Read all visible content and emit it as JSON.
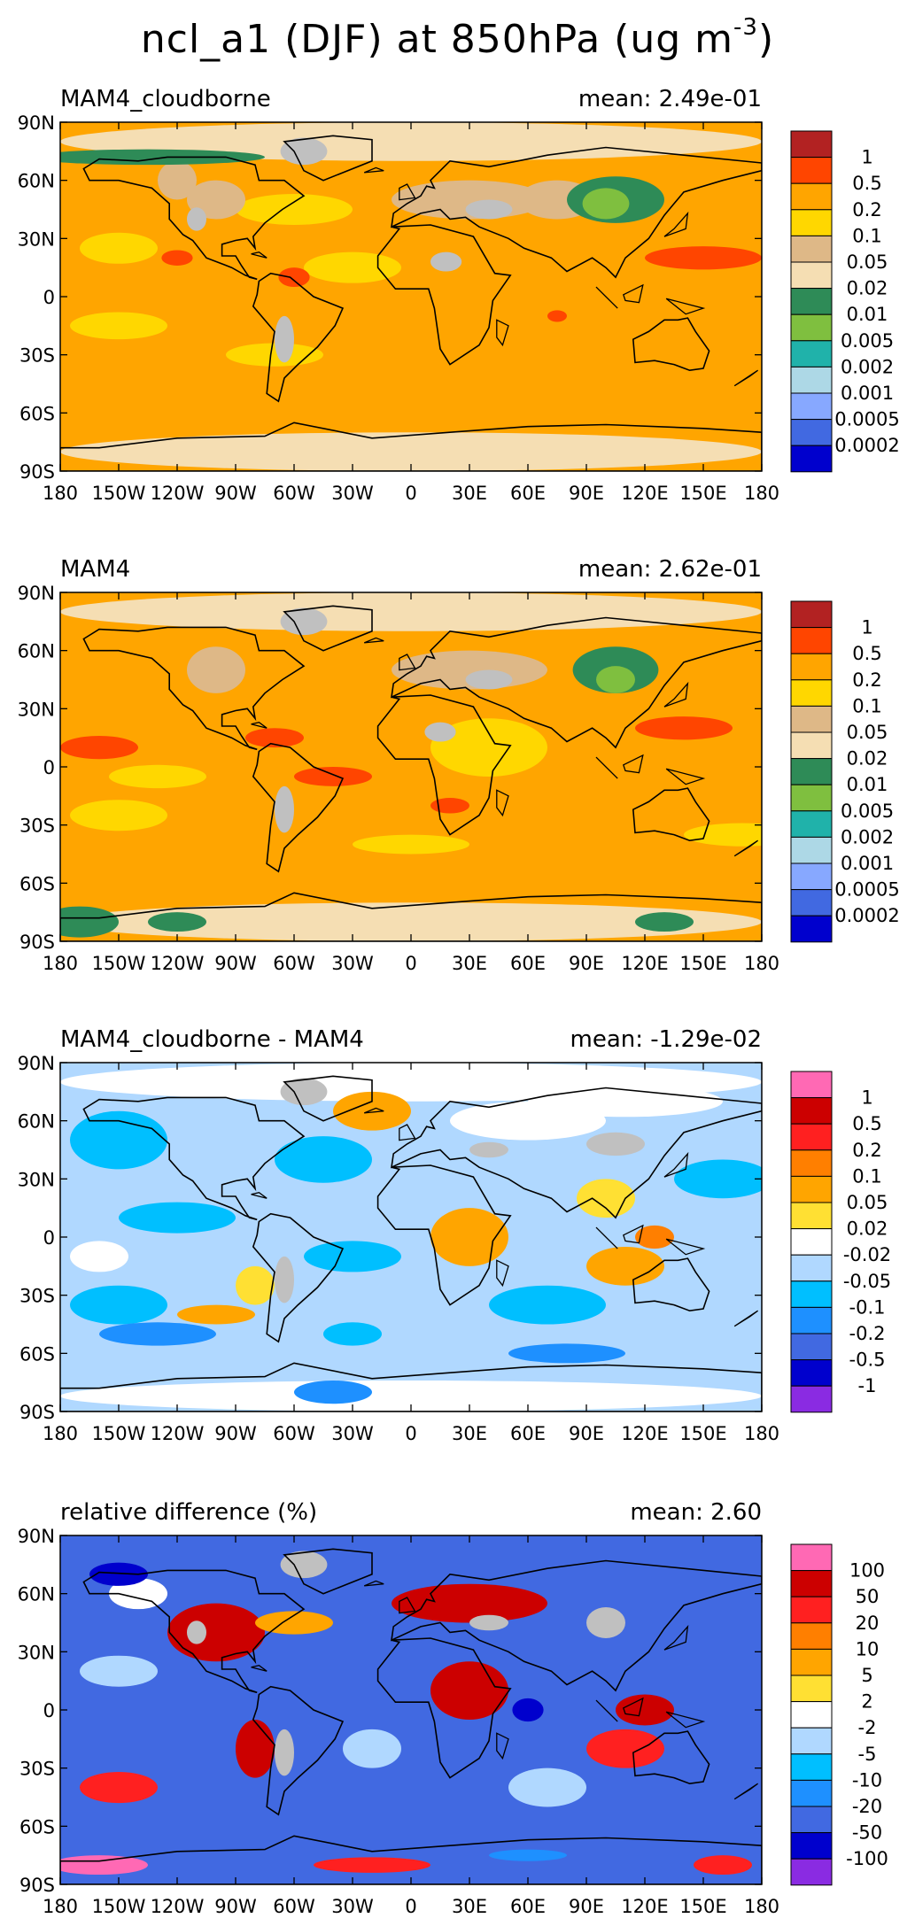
{
  "title": {
    "main": "ncl_a1 (DJF) at 850hPa (ug m",
    "superscript": "-3",
    "close": ")"
  },
  "chart_data": [
    {
      "type": "heatmap",
      "name": "MAM4_cloudborne",
      "title_left": "MAM4_cloudborne",
      "title_right": "mean: 2.49e-01",
      "mean": 0.249,
      "xlabel": "",
      "ylabel": "",
      "xlim": [
        -180,
        180
      ],
      "ylim": [
        -90,
        90
      ],
      "x_ticks": [
        -180,
        -150,
        -120,
        -90,
        -60,
        -30,
        0,
        30,
        60,
        90,
        120,
        150,
        180
      ],
      "x_tick_labels": [
        "180",
        "150W",
        "120W",
        "90W",
        "60W",
        "30W",
        "0",
        "30E",
        "60E",
        "90E",
        "120E",
        "150E",
        "180"
      ],
      "y_ticks": [
        90,
        60,
        30,
        0,
        -30,
        -60,
        -90
      ],
      "y_tick_labels": [
        "90N",
        "60N",
        "30N",
        "0",
        "30S",
        "60S",
        "90S"
      ],
      "legend": {
        "levels": [
          "1",
          "0.5",
          "0.2",
          "0.1",
          "0.05",
          "0.02",
          "0.01",
          "0.005",
          "0.002",
          "0.001",
          "0.0005",
          "0.0002"
        ],
        "colors": [
          "#b22222",
          "#ff4500",
          "#ffa500",
          "#ffd700",
          "#deb887",
          "#f5deb3",
          "#2e8b57",
          "#7fbf3f",
          "#20b2aa",
          "#add8e6",
          "#87a8ff",
          "#4169e1",
          "#0000cd"
        ]
      },
      "background_color": "#ffa500"
    },
    {
      "type": "heatmap",
      "name": "MAM4",
      "title_left": "MAM4",
      "title_right": "mean: 2.62e-01",
      "mean": 0.262,
      "xlabel": "",
      "ylabel": "",
      "xlim": [
        -180,
        180
      ],
      "ylim": [
        -90,
        90
      ],
      "x_ticks": [
        -180,
        -150,
        -120,
        -90,
        -60,
        -30,
        0,
        30,
        60,
        90,
        120,
        150,
        180
      ],
      "x_tick_labels": [
        "180",
        "150W",
        "120W",
        "90W",
        "60W",
        "30W",
        "0",
        "30E",
        "60E",
        "90E",
        "120E",
        "150E",
        "180"
      ],
      "y_ticks": [
        90,
        60,
        30,
        0,
        -30,
        -60,
        -90
      ],
      "y_tick_labels": [
        "90N",
        "60N",
        "30N",
        "0",
        "30S",
        "60S",
        "90S"
      ],
      "legend": {
        "levels": [
          "1",
          "0.5",
          "0.2",
          "0.1",
          "0.05",
          "0.02",
          "0.01",
          "0.005",
          "0.002",
          "0.001",
          "0.0005",
          "0.0002"
        ],
        "colors": [
          "#b22222",
          "#ff4500",
          "#ffa500",
          "#ffd700",
          "#deb887",
          "#f5deb3",
          "#2e8b57",
          "#7fbf3f",
          "#20b2aa",
          "#add8e6",
          "#87a8ff",
          "#4169e1",
          "#0000cd"
        ]
      },
      "background_color": "#ffa500"
    },
    {
      "type": "heatmap",
      "name": "difference",
      "title_left": "MAM4_cloudborne - MAM4",
      "title_right": "mean: -1.29e-02",
      "mean": -0.0129,
      "xlabel": "",
      "ylabel": "",
      "xlim": [
        -180,
        180
      ],
      "ylim": [
        -90,
        90
      ],
      "x_ticks": [
        -180,
        -150,
        -120,
        -90,
        -60,
        -30,
        0,
        30,
        60,
        90,
        120,
        150,
        180
      ],
      "x_tick_labels": [
        "180",
        "150W",
        "120W",
        "90W",
        "60W",
        "30W",
        "0",
        "30E",
        "60E",
        "90E",
        "120E",
        "150E",
        "180"
      ],
      "y_ticks": [
        90,
        60,
        30,
        0,
        -30,
        -60,
        -90
      ],
      "y_tick_labels": [
        "90N",
        "60N",
        "30N",
        "0",
        "30S",
        "60S",
        "90S"
      ],
      "legend": {
        "levels": [
          "1",
          "0.5",
          "0.2",
          "0.1",
          "0.05",
          "0.02",
          "-0.02",
          "-0.05",
          "-0.1",
          "-0.2",
          "-0.5",
          "-1"
        ],
        "colors": [
          "#ff69b4",
          "#cc0000",
          "#ff2020",
          "#ff7f00",
          "#ffa500",
          "#ffe033",
          "#ffffff",
          "#b0d8ff",
          "#00bfff",
          "#1e90ff",
          "#4169e1",
          "#0000cd",
          "#8a2be2"
        ]
      },
      "background_color": "#b0d8ff"
    },
    {
      "type": "heatmap",
      "name": "relative-difference",
      "title_left": "relative difference (%)",
      "title_right": "mean:  2.60",
      "mean": 2.6,
      "xlabel": "",
      "ylabel": "",
      "xlim": [
        -180,
        180
      ],
      "ylim": [
        -90,
        90
      ],
      "x_ticks": [
        -180,
        -150,
        -120,
        -90,
        -60,
        -30,
        0,
        30,
        60,
        90,
        120,
        150,
        180
      ],
      "x_tick_labels": [
        "180",
        "150W",
        "120W",
        "90W",
        "60W",
        "30W",
        "0",
        "30E",
        "60E",
        "90E",
        "120E",
        "150E",
        "180"
      ],
      "y_ticks": [
        90,
        60,
        30,
        0,
        -30,
        -60,
        -90
      ],
      "y_tick_labels": [
        "90N",
        "60N",
        "30N",
        "0",
        "30S",
        "60S",
        "90S"
      ],
      "legend": {
        "levels": [
          "100",
          "50",
          "20",
          "10",
          "5",
          "2",
          "-2",
          "-5",
          "-10",
          "-20",
          "-50",
          "-100"
        ],
        "colors": [
          "#ff69b4",
          "#cc0000",
          "#ff2020",
          "#ff7f00",
          "#ffa500",
          "#ffe033",
          "#ffffff",
          "#b0d8ff",
          "#00bfff",
          "#1e90ff",
          "#4169e1",
          "#0000cd",
          "#8a2be2"
        ]
      },
      "background_color": "#4169e1"
    }
  ]
}
